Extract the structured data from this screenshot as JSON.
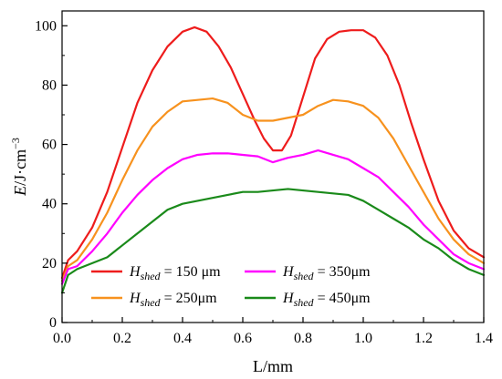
{
  "chart_data": {
    "type": "line",
    "xlabel": "L/mm",
    "ylabel": {
      "base": "E",
      "unit": "/J·cm",
      "exponent": "−3"
    },
    "xlim": [
      0,
      1.4
    ],
    "ylim": [
      0,
      105
    ],
    "xticks": [
      "0.0",
      "0.2",
      "0.4",
      "0.6",
      "0.8",
      "1.0",
      "1.2",
      "1.4"
    ],
    "yticks": [
      "0",
      "20",
      "40",
      "60",
      "80",
      "100"
    ],
    "grid": false,
    "legend_position": "bottom-center",
    "series": [
      {
        "name": "H_shed = 150 μm",
        "legend": {
          "sym": "H",
          "sub": "shed",
          "rest": " = 150 μm"
        },
        "color": "#ee1c1c",
        "x": [
          0,
          0.02,
          0.05,
          0.1,
          0.15,
          0.2,
          0.25,
          0.3,
          0.35,
          0.4,
          0.44,
          0.48,
          0.52,
          0.56,
          0.6,
          0.64,
          0.67,
          0.7,
          0.73,
          0.76,
          0.8,
          0.84,
          0.88,
          0.92,
          0.96,
          1.0,
          1.04,
          1.08,
          1.12,
          1.16,
          1.2,
          1.25,
          1.3,
          1.35,
          1.4
        ],
        "y": [
          15,
          21,
          24,
          32,
          44,
          59,
          74,
          85,
          93,
          98,
          99.5,
          98,
          93,
          86,
          77,
          68,
          62,
          58,
          58,
          63,
          76,
          89,
          95.5,
          98,
          98.5,
          98.5,
          96,
          90,
          80,
          67,
          55,
          41,
          31,
          25,
          22
        ]
      },
      {
        "name": "H_shed = 250μm",
        "legend": {
          "sym": "H",
          "sub": "shed",
          "rest": " = 250μm"
        },
        "color": "#f7921e",
        "x": [
          0,
          0.02,
          0.05,
          0.1,
          0.15,
          0.2,
          0.25,
          0.3,
          0.35,
          0.4,
          0.45,
          0.5,
          0.55,
          0.6,
          0.65,
          0.7,
          0.75,
          0.8,
          0.85,
          0.9,
          0.95,
          1.0,
          1.05,
          1.1,
          1.15,
          1.2,
          1.25,
          1.3,
          1.35,
          1.4
        ],
        "y": [
          14,
          19,
          21,
          28,
          37,
          48,
          58,
          66,
          71,
          74.5,
          75,
          75.5,
          74,
          70,
          68,
          68,
          69,
          70,
          73,
          75,
          74.5,
          73,
          69,
          62,
          53,
          44,
          35,
          28,
          23,
          20
        ]
      },
      {
        "name": "H_shed = 350μm",
        "legend": {
          "sym": "H",
          "sub": "shed",
          "rest": " = 350μm"
        },
        "color": "#ff00ff",
        "x": [
          0,
          0.02,
          0.05,
          0.1,
          0.15,
          0.2,
          0.25,
          0.3,
          0.35,
          0.4,
          0.45,
          0.5,
          0.55,
          0.6,
          0.65,
          0.7,
          0.75,
          0.8,
          0.85,
          0.9,
          0.95,
          1.0,
          1.05,
          1.1,
          1.15,
          1.2,
          1.25,
          1.3,
          1.35,
          1.4
        ],
        "y": [
          13,
          18,
          19,
          24,
          30,
          37,
          43,
          48,
          52,
          55,
          56.5,
          57,
          57,
          56.5,
          56,
          54,
          55.5,
          56.5,
          58,
          56.5,
          55,
          52,
          49,
          44,
          39,
          33,
          28,
          23,
          20,
          18
        ]
      },
      {
        "name": "H_shed = 450μm",
        "legend": {
          "sym": "H",
          "sub": "shed",
          "rest": " = 450μm"
        },
        "color": "#1a8a1a",
        "x": [
          0,
          0.02,
          0.05,
          0.1,
          0.15,
          0.2,
          0.25,
          0.3,
          0.35,
          0.4,
          0.45,
          0.5,
          0.55,
          0.6,
          0.65,
          0.7,
          0.75,
          0.8,
          0.85,
          0.9,
          0.95,
          1.0,
          1.05,
          1.1,
          1.15,
          1.2,
          1.25,
          1.3,
          1.35,
          1.4
        ],
        "y": [
          10,
          16,
          18,
          20,
          22,
          26,
          30,
          34,
          38,
          40,
          41,
          42,
          43,
          44,
          44,
          44.5,
          45,
          44.5,
          44,
          43.5,
          43,
          41,
          38,
          35,
          32,
          28,
          25,
          21,
          18,
          16
        ]
      }
    ]
  }
}
